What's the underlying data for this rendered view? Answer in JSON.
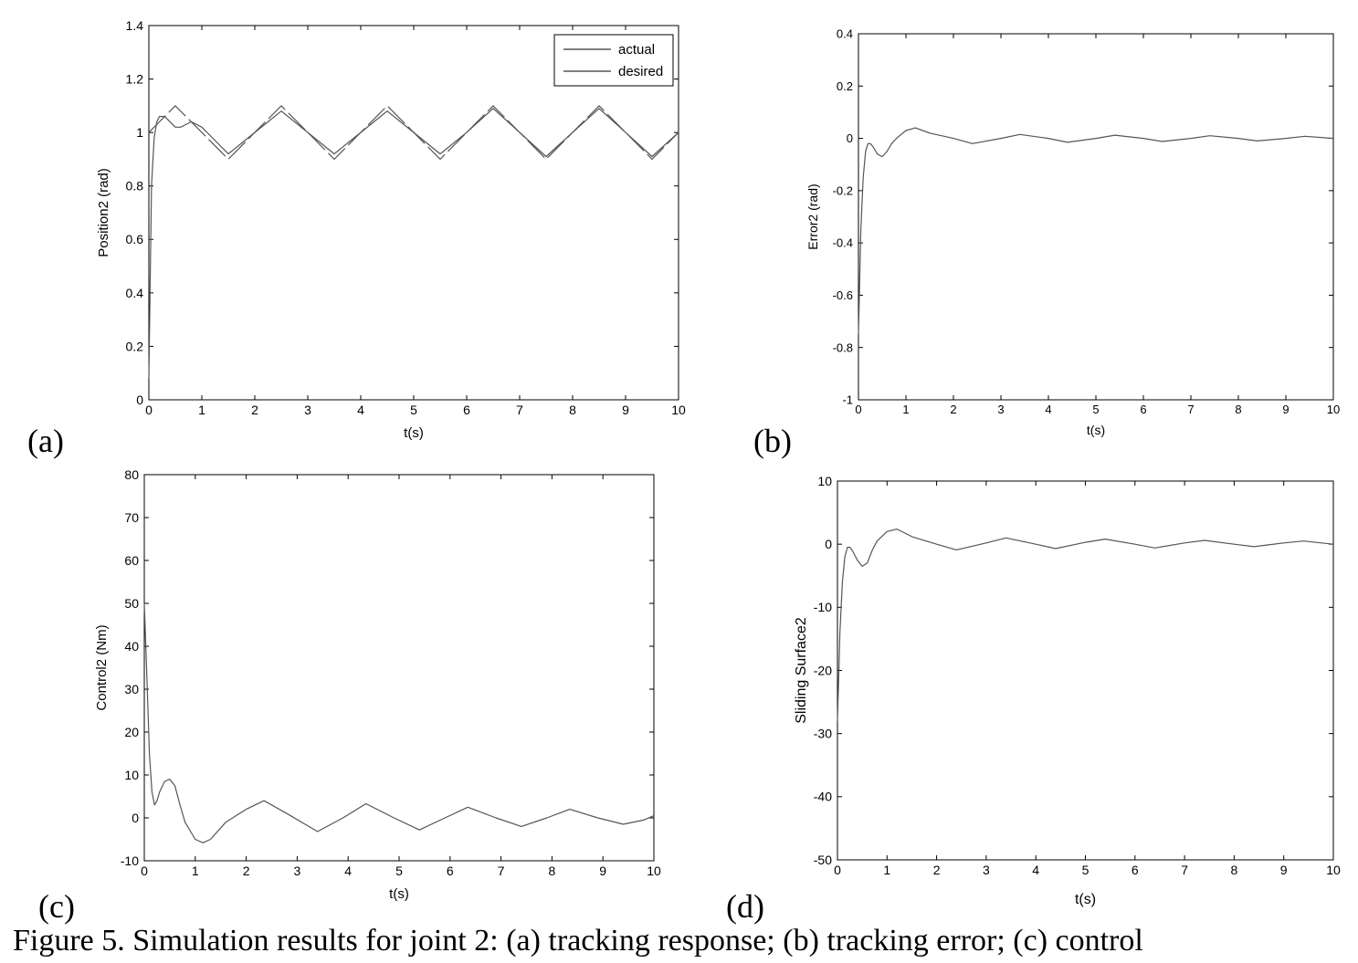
{
  "caption": "Figure 5. Simulation results for joint 2: (a) tracking response; (b) tracking error; (c) control",
  "colors": {
    "line": "#555555",
    "axis": "#000000"
  },
  "chart_data": [
    {
      "panel": "(a)",
      "type": "line",
      "xlabel": "t(s)",
      "ylabel": "Position2 (rad)",
      "xlim": [
        0,
        10
      ],
      "ylim": [
        0,
        1.4
      ],
      "xticks": [
        0,
        1,
        2,
        3,
        4,
        5,
        6,
        7,
        8,
        9,
        10
      ],
      "yticks": [
        0,
        0.2,
        0.4,
        0.6,
        0.8,
        1,
        1.2,
        1.4
      ],
      "legend": {
        "position": "top-right",
        "entries": [
          "actual",
          "desired"
        ]
      },
      "grid": false,
      "series": [
        {
          "name": "actual",
          "x": [
            0,
            0.05,
            0.1,
            0.15,
            0.2,
            0.3,
            0.4,
            0.5,
            0.6,
            0.7,
            0.8,
            1.0,
            1.2,
            1.5,
            2.0,
            2.5,
            3.0,
            3.5,
            4.0,
            4.5,
            5.0,
            5.5,
            6.0,
            6.5,
            7.0,
            7.5,
            8.0,
            8.5,
            9.0,
            9.5,
            10.0
          ],
          "y": [
            0.08,
            0.8,
            0.98,
            1.04,
            1.06,
            1.06,
            1.04,
            1.02,
            1.02,
            1.03,
            1.04,
            1.02,
            0.98,
            0.92,
            1.0,
            1.08,
            1.0,
            0.92,
            1.0,
            1.08,
            1.0,
            0.92,
            1.0,
            1.09,
            1.0,
            0.91,
            1.0,
            1.09,
            1.0,
            0.91,
            1.0
          ]
        },
        {
          "name": "desired",
          "x": [
            0,
            0.5,
            1.0,
            1.5,
            2.0,
            2.5,
            3.0,
            3.5,
            4.0,
            4.5,
            5.0,
            5.5,
            6.0,
            6.5,
            7.0,
            7.5,
            8.0,
            8.5,
            9.0,
            9.5,
            10.0
          ],
          "y": [
            1.0,
            1.1,
            1.0,
            0.9,
            1.0,
            1.1,
            1.0,
            0.9,
            1.0,
            1.1,
            1.0,
            0.9,
            1.0,
            1.1,
            1.0,
            0.9,
            1.0,
            1.1,
            1.0,
            0.9,
            1.0
          ]
        }
      ]
    },
    {
      "panel": "(b)",
      "type": "line",
      "xlabel": "t(s)",
      "ylabel": "Error2 (rad)",
      "xlim": [
        0,
        10
      ],
      "ylim": [
        -1,
        0.4
      ],
      "xticks": [
        0,
        1,
        2,
        3,
        4,
        5,
        6,
        7,
        8,
        9,
        10
      ],
      "yticks": [
        -1,
        -0.8,
        -0.6,
        -0.4,
        -0.2,
        0,
        0.2,
        0.4
      ],
      "grid": false,
      "series": [
        {
          "x": [
            0,
            0.05,
            0.1,
            0.15,
            0.2,
            0.25,
            0.3,
            0.4,
            0.5,
            0.6,
            0.7,
            0.8,
            1.0,
            1.2,
            1.5,
            2.0,
            2.4,
            3.0,
            3.4,
            4.0,
            4.4,
            5.0,
            5.4,
            6.0,
            6.4,
            7.0,
            7.4,
            8.0,
            8.4,
            9.0,
            9.4,
            10.0
          ],
          "y": [
            -0.75,
            -0.35,
            -0.15,
            -0.05,
            -0.02,
            -0.02,
            -0.03,
            -0.06,
            -0.07,
            -0.05,
            -0.02,
            0.0,
            0.03,
            0.04,
            0.02,
            0.0,
            -0.02,
            0.0,
            0.015,
            0.0,
            -0.015,
            0.0,
            0.012,
            0.0,
            -0.012,
            0.0,
            0.01,
            0.0,
            -0.01,
            0.0,
            0.008,
            0.0
          ]
        }
      ]
    },
    {
      "panel": "(c)",
      "type": "line",
      "xlabel": "t(s)",
      "ylabel": "Control2 (Nm)",
      "xlim": [
        0,
        10
      ],
      "ylim": [
        -10,
        80
      ],
      "xticks": [
        0,
        1,
        2,
        3,
        4,
        5,
        6,
        7,
        8,
        9,
        10
      ],
      "yticks": [
        -10,
        0,
        10,
        20,
        30,
        40,
        50,
        60,
        70,
        80
      ],
      "grid": false,
      "series": [
        {
          "x": [
            0,
            0.05,
            0.1,
            0.15,
            0.2,
            0.25,
            0.3,
            0.4,
            0.5,
            0.6,
            0.7,
            0.8,
            1.0,
            1.15,
            1.3,
            1.6,
            2.0,
            2.35,
            2.8,
            3.4,
            3.9,
            4.35,
            4.9,
            5.4,
            5.9,
            6.35,
            6.9,
            7.4,
            7.9,
            8.35,
            8.9,
            9.4,
            9.8,
            10.0
          ],
          "y": [
            50,
            33,
            15,
            6,
            3,
            4,
            6,
            8.5,
            9,
            7.5,
            3,
            -1,
            -5,
            -5.8,
            -5,
            -1,
            2,
            4,
            1,
            -3.2,
            0,
            3.3,
            0,
            -2.8,
            0,
            2.5,
            0,
            -2,
            0,
            2,
            0,
            -1.5,
            -0.5,
            0.5
          ]
        }
      ]
    },
    {
      "panel": "(d)",
      "type": "line",
      "xlabel": "t(s)",
      "ylabel": "Sliding Surface2",
      "xlim": [
        0,
        10
      ],
      "ylim": [
        -50,
        10
      ],
      "xticks": [
        0,
        1,
        2,
        3,
        4,
        5,
        6,
        7,
        8,
        9,
        10
      ],
      "yticks": [
        -50,
        -40,
        -30,
        -20,
        -10,
        0,
        10
      ],
      "grid": false,
      "series": [
        {
          "x": [
            0,
            0.05,
            0.1,
            0.15,
            0.2,
            0.25,
            0.3,
            0.4,
            0.5,
            0.6,
            0.7,
            0.8,
            1.0,
            1.2,
            1.5,
            2.0,
            2.4,
            3.0,
            3.4,
            4.0,
            4.4,
            5.0,
            5.4,
            6.0,
            6.4,
            7.0,
            7.4,
            8.0,
            8.4,
            9.0,
            9.4,
            10.0
          ],
          "y": [
            -28,
            -14,
            -6,
            -2,
            -0.5,
            -0.5,
            -1,
            -2.5,
            -3.5,
            -3,
            -1,
            0.5,
            2,
            2.4,
            1.2,
            0,
            -0.9,
            0.2,
            1,
            0,
            -0.7,
            0.3,
            0.8,
            0,
            -0.6,
            0.2,
            0.6,
            0,
            -0.4,
            0.2,
            0.5,
            0
          ]
        }
      ]
    }
  ]
}
